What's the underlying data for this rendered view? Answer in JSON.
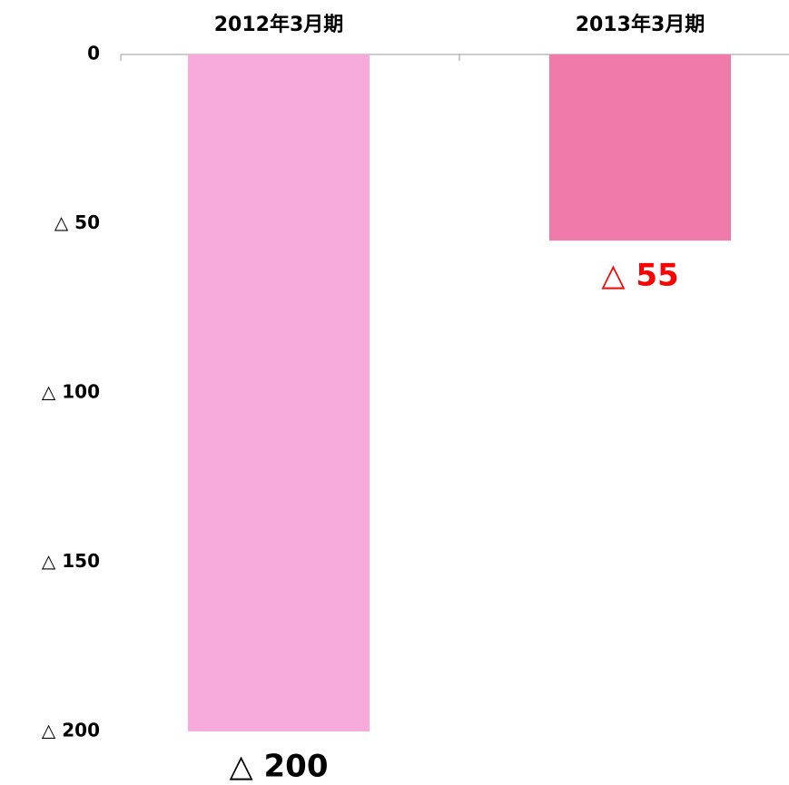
{
  "chart_data": {
    "type": "bar",
    "categories": [
      "2012年3月期",
      "2013年3月期"
    ],
    "values": [
      -200,
      -55
    ],
    "value_labels": [
      "△ 200",
      "△ 55"
    ],
    "colors": [
      "#f9aadc",
      "#f07aaa"
    ],
    "value_label_colors": [
      "#000000",
      "#ff0000"
    ],
    "ylim": [
      -200,
      0
    ],
    "yticks": [
      0,
      {
        "value": -50,
        "label": "△ 50"
      },
      {
        "value": -100,
        "label": "△ 100"
      },
      {
        "value": -150,
        "label": "△ 150"
      },
      {
        "value": -200,
        "label": "△ 200"
      }
    ],
    "grid": false
  }
}
